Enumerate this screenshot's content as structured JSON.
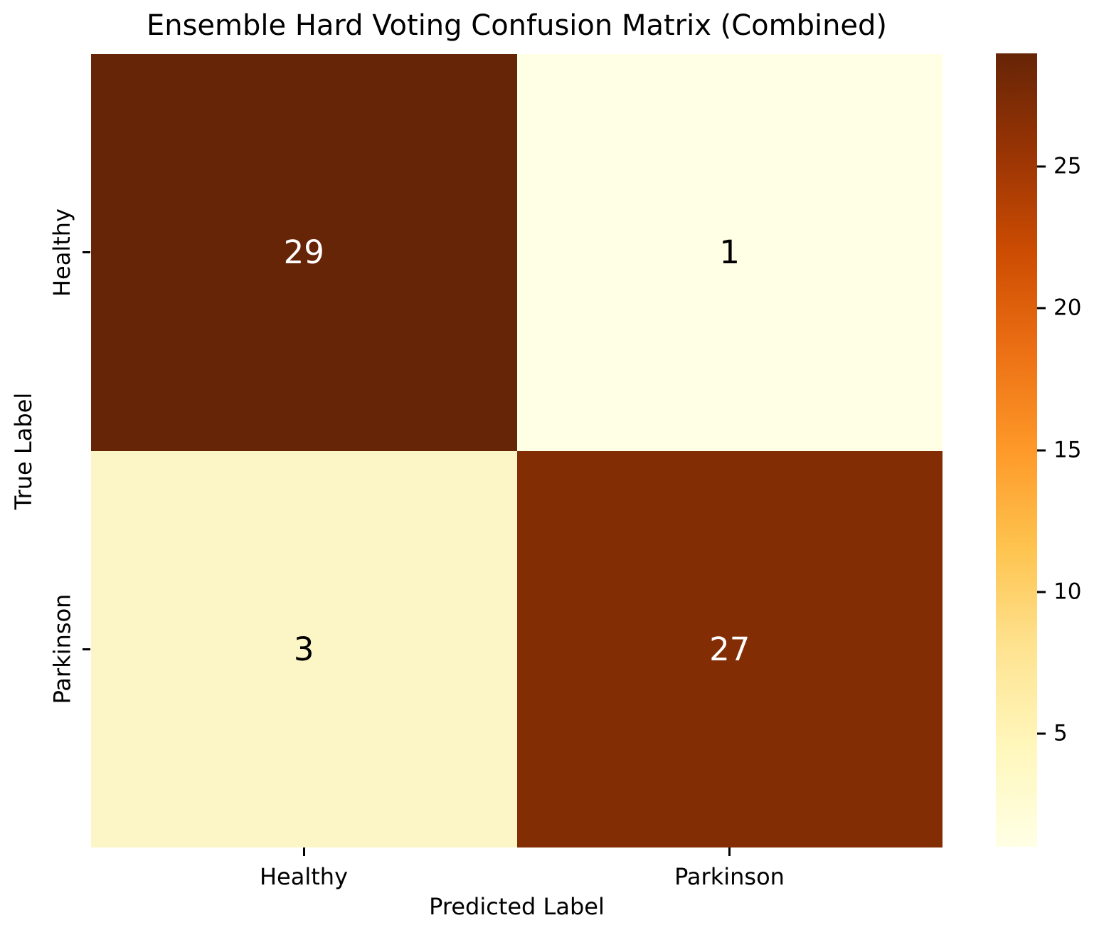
{
  "chart_data": {
    "type": "heatmap",
    "title": "Ensemble Hard Voting Confusion Matrix (Combined)",
    "xlabel": "Predicted Label",
    "ylabel": "True Label",
    "x_categories": [
      "Healthy",
      "Parkinson"
    ],
    "y_categories": [
      "Healthy",
      "Parkinson"
    ],
    "values": [
      [
        29,
        1
      ],
      [
        3,
        27
      ]
    ],
    "vmin": 1,
    "vmax": 29,
    "colormap": "YlOrBr",
    "legend_position": "right-colorbar",
    "grid": false,
    "cells": [
      {
        "row": "Healthy",
        "col": "Healthy",
        "value": "29",
        "bg": "#662506",
        "fg": "#ffffff"
      },
      {
        "row": "Healthy",
        "col": "Parkinson",
        "value": "1",
        "bg": "#ffffe5",
        "fg": "#000000"
      },
      {
        "row": "Parkinson",
        "col": "Healthy",
        "value": "3",
        "bg": "#fcf5c6",
        "fg": "#000000"
      },
      {
        "row": "Parkinson",
        "col": "Parkinson",
        "value": "27",
        "bg": "#832d04",
        "fg": "#ffffff"
      }
    ],
    "colorbar": {
      "ticks": [
        {
          "label": "5",
          "pos": 14.286
        },
        {
          "label": "10",
          "pos": 32.143
        },
        {
          "label": "15",
          "pos": 50
        },
        {
          "label": "20",
          "pos": 67.857
        },
        {
          "label": "25",
          "pos": 85.714
        }
      ],
      "gradient_stops": [
        {
          "color": "#ffffe5",
          "pos": 0
        },
        {
          "color": "#fff7bc",
          "pos": 12.5
        },
        {
          "color": "#fee391",
          "pos": 25
        },
        {
          "color": "#fec44f",
          "pos": 37.5
        },
        {
          "color": "#fe9929",
          "pos": 50
        },
        {
          "color": "#ec7014",
          "pos": 62.5
        },
        {
          "color": "#cc4c02",
          "pos": 75
        },
        {
          "color": "#993404",
          "pos": 87.5
        },
        {
          "color": "#662506",
          "pos": 100
        }
      ]
    }
  }
}
